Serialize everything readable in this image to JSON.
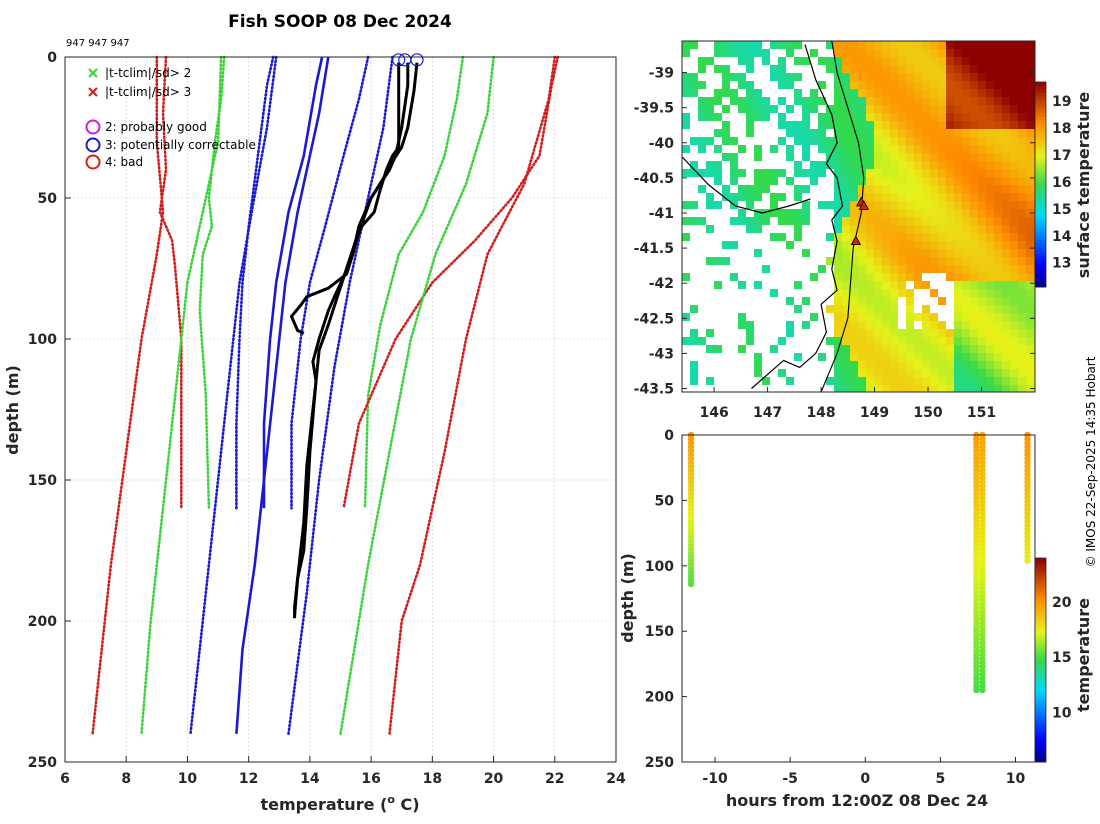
{
  "title": "Fish SOOP 08 Dec 2024",
  "cruise_ids": "947 947 947",
  "credit": "© IMOS 22-Sep-2025 14:35 Hobart",
  "colors": {
    "black": "#000000",
    "blue": "#1a1ad2",
    "green": "#3cd23c",
    "red": "#d21e1e",
    "magenta": "#d21ed2"
  },
  "chart_data": [
    {
      "type": "line",
      "name": "profiles",
      "xlabel": "temperature (",
      "xlabel_sup": "o",
      "xlabel_suffix": " C)",
      "ylabel": "depth (m)",
      "xlim": [
        6,
        24
      ],
      "ylim": [
        250,
        0
      ],
      "xticks": [
        6,
        8,
        10,
        12,
        14,
        16,
        18,
        20,
        22,
        24
      ],
      "yticks": [
        0,
        50,
        100,
        150,
        200,
        250
      ],
      "legend": [
        {
          "label": "|t-tclim|/sd> 2",
          "marker": "x",
          "color": "#3cd23c"
        },
        {
          "label": "|t-tclim|/sd> 3",
          "marker": "x",
          "color": "#d21e1e"
        },
        {
          "label": "2: probably good",
          "marker": "o",
          "color": "#d21ed2"
        },
        {
          "label": "3: potentially correctable",
          "marker": "o",
          "color": "#1a1ad2"
        },
        {
          "label": "4: bad",
          "marker": "o",
          "color": "#d21e1e"
        }
      ],
      "series": [
        {
          "name": "clim -3sd (0-160)",
          "style": "dotted",
          "color": "#d21e1e",
          "points": [
            [
              9.3,
              0
            ],
            [
              9.2,
              20
            ],
            [
              9.3,
              40
            ],
            [
              9.1,
              55
            ],
            [
              9.5,
              65
            ],
            [
              9.6,
              75
            ],
            [
              9.8,
              100
            ],
            [
              9.8,
              130
            ],
            [
              9.8,
              160
            ]
          ]
        },
        {
          "name": "clim -2sd (0-160)",
          "style": "dotted",
          "color": "#3cd23c",
          "points": [
            [
              11.2,
              0
            ],
            [
              11.1,
              15
            ],
            [
              10.9,
              30
            ],
            [
              10.7,
              50
            ],
            [
              10.8,
              60
            ],
            [
              10.5,
              70
            ],
            [
              10.4,
              90
            ],
            [
              10.6,
              120
            ],
            [
              10.7,
              160
            ]
          ]
        },
        {
          "name": "clim -1sd (0-160)",
          "style": "dotted",
          "color": "#1a1ad2",
          "points": [
            [
              12.8,
              0
            ],
            [
              12.6,
              10
            ],
            [
              12.3,
              35
            ],
            [
              12.0,
              60
            ],
            [
              11.8,
              80
            ],
            [
              11.7,
              100
            ],
            [
              11.6,
              130
            ],
            [
              11.6,
              160
            ]
          ]
        },
        {
          "name": "clim mean (0-160)",
          "style": "solid",
          "color": "#1a1ad2",
          "points": [
            [
              14.4,
              0
            ],
            [
              14.2,
              10
            ],
            [
              13.8,
              35
            ],
            [
              13.3,
              55
            ],
            [
              12.9,
              80
            ],
            [
              12.7,
              100
            ],
            [
              12.5,
              130
            ],
            [
              12.5,
              160
            ]
          ]
        },
        {
          "name": "clim +1sd (0-160)",
          "style": "dotted",
          "color": "#1a1ad2",
          "points": [
            [
              15.9,
              0
            ],
            [
              15.6,
              15
            ],
            [
              15.1,
              35
            ],
            [
              14.5,
              60
            ],
            [
              14.0,
              80
            ],
            [
              13.7,
              100
            ],
            [
              13.4,
              130
            ],
            [
              13.4,
              160
            ]
          ]
        },
        {
          "name": "clim +2sd (0-160)",
          "style": "dotted",
          "color": "#3cd23c",
          "points": [
            [
              19.0,
              0
            ],
            [
              18.8,
              15
            ],
            [
              18.4,
              35
            ],
            [
              17.7,
              55
            ],
            [
              16.9,
              70
            ],
            [
              16.3,
              95
            ],
            [
              15.9,
              120
            ],
            [
              15.8,
              160
            ]
          ]
        },
        {
          "name": "clim +3sd (0-160)",
          "style": "dotted",
          "color": "#d21e1e",
          "points": [
            [
              22.1,
              0
            ],
            [
              21.9,
              10
            ],
            [
              21.5,
              35
            ],
            [
              20.6,
              50
            ],
            [
              19.4,
              65
            ],
            [
              18.0,
              80
            ],
            [
              16.8,
              100
            ],
            [
              15.6,
              130
            ],
            [
              15.1,
              160
            ]
          ]
        },
        {
          "name": "clim -3sd (0-240)",
          "style": "dotted",
          "color": "#d21e1e",
          "points": [
            [
              9.0,
              0
            ],
            [
              9.0,
              30
            ],
            [
              9.2,
              55
            ],
            [
              9.0,
              70
            ],
            [
              8.5,
              100
            ],
            [
              8.0,
              140
            ],
            [
              7.5,
              180
            ],
            [
              6.9,
              240
            ]
          ]
        },
        {
          "name": "clim -2sd (0-240)",
          "style": "dotted",
          "color": "#3cd23c",
          "points": [
            [
              11.1,
              0
            ],
            [
              11.0,
              30
            ],
            [
              10.5,
              55
            ],
            [
              10.0,
              80
            ],
            [
              9.6,
              120
            ],
            [
              9.2,
              160
            ],
            [
              8.8,
              200
            ],
            [
              8.5,
              240
            ]
          ]
        },
        {
          "name": "clim -1sd (0-240)",
          "style": "dotted",
          "color": "#1a1ad2",
          "points": [
            [
              12.9,
              0
            ],
            [
              12.6,
              25
            ],
            [
              12.1,
              55
            ],
            [
              11.7,
              80
            ],
            [
              11.3,
              120
            ],
            [
              10.9,
              160
            ],
            [
              10.5,
              200
            ],
            [
              10.1,
              240
            ]
          ]
        },
        {
          "name": "clim mean (0-240)",
          "style": "solid",
          "color": "#1a1ad2",
          "points": [
            [
              14.6,
              0
            ],
            [
              14.3,
              20
            ],
            [
              13.6,
              55
            ],
            [
              13.2,
              80
            ],
            [
              12.8,
              120
            ],
            [
              12.5,
              150
            ],
            [
              12.2,
              180
            ],
            [
              11.8,
              210
            ],
            [
              11.6,
              240
            ]
          ]
        },
        {
          "name": "clim +1sd (0-240)",
          "style": "dotted",
          "color": "#1a1ad2",
          "points": [
            [
              16.7,
              0
            ],
            [
              16.4,
              25
            ],
            [
              15.8,
              55
            ],
            [
              15.3,
              80
            ],
            [
              14.8,
              110
            ],
            [
              14.3,
              150
            ],
            [
              13.9,
              190
            ],
            [
              13.3,
              240
            ]
          ]
        },
        {
          "name": "clim +2sd (0-240)",
          "style": "dotted",
          "color": "#3cd23c",
          "points": [
            [
              20.0,
              0
            ],
            [
              19.8,
              20
            ],
            [
              19.1,
              45
            ],
            [
              18.1,
              70
            ],
            [
              17.3,
              100
            ],
            [
              16.6,
              140
            ],
            [
              15.9,
              180
            ],
            [
              15.0,
              240
            ]
          ]
        },
        {
          "name": "clim +3sd (0-240)",
          "style": "dotted",
          "color": "#d21e1e",
          "points": [
            [
              22.0,
              0
            ],
            [
              21.8,
              15
            ],
            [
              21.0,
              45
            ],
            [
              19.8,
              70
            ],
            [
              19.1,
              100
            ],
            [
              18.4,
              140
            ],
            [
              17.6,
              180
            ],
            [
              17.0,
              200
            ],
            [
              16.6,
              240
            ]
          ]
        },
        {
          "name": "xbt profile 1",
          "style": "solid",
          "color": "#000000",
          "points": [
            [
              16.9,
              2
            ],
            [
              16.9,
              15
            ],
            [
              16.9,
              32
            ],
            [
              16.7,
              35
            ],
            [
              16.5,
              40
            ],
            [
              16.3,
              47
            ],
            [
              16.1,
              55
            ],
            [
              15.7,
              60
            ],
            [
              15.5,
              65
            ],
            [
              15.2,
              75
            ],
            [
              14.9,
              85
            ],
            [
              14.6,
              95
            ],
            [
              14.3,
              104
            ],
            [
              14.2,
              115
            ],
            [
              14.0,
              140
            ],
            [
              13.9,
              160
            ],
            [
              13.8,
              175
            ],
            [
              13.6,
              185
            ],
            [
              13.5,
              195
            ],
            [
              13.5,
              199
            ]
          ]
        },
        {
          "name": "xbt profile 2",
          "style": "solid",
          "color": "#000000",
          "points": [
            [
              17.2,
              2
            ],
            [
              17.2,
              10
            ],
            [
              17.0,
              25
            ],
            [
              16.8,
              35
            ],
            [
              16.6,
              40
            ],
            [
              16.3,
              45
            ],
            [
              16.0,
              50
            ],
            [
              15.6,
              60
            ],
            [
              15.4,
              70
            ],
            [
              15.2,
              77
            ],
            [
              14.6,
              82
            ],
            [
              13.9,
              85
            ],
            [
              13.7,
              88
            ],
            [
              13.4,
              92
            ],
            [
              13.6,
              97
            ],
            [
              13.8,
              98
            ]
          ]
        },
        {
          "name": "xbt profile 3",
          "style": "solid",
          "color": "#000000",
          "points": [
            [
              17.5,
              2
            ],
            [
              17.4,
              12
            ],
            [
              17.2,
              25
            ],
            [
              17.0,
              32
            ],
            [
              16.7,
              37
            ],
            [
              16.4,
              43
            ],
            [
              16.0,
              50
            ],
            [
              15.8,
              56
            ],
            [
              15.6,
              62
            ],
            [
              15.4,
              70
            ],
            [
              15.1,
              78
            ],
            [
              14.8,
              85
            ],
            [
              14.6,
              90
            ],
            [
              14.3,
              100
            ],
            [
              14.1,
              108
            ],
            [
              14.2,
              115
            ],
            [
              14.1,
              125
            ],
            [
              13.9,
              145
            ],
            [
              13.8,
              165
            ],
            [
              13.6,
              185
            ],
            [
              13.5,
              198
            ]
          ]
        }
      ],
      "surface_markers": [
        [
          16.9,
          1
        ],
        [
          17.1,
          1
        ],
        [
          17.5,
          1
        ]
      ]
    },
    {
      "type": "heatmap",
      "name": "sst map",
      "xlim": [
        145.4,
        152.0
      ],
      "ylim": [
        -43.55,
        -38.55
      ],
      "xticks": [
        146,
        147,
        148,
        149,
        150,
        151
      ],
      "yticks": [
        -39,
        -39.5,
        -40,
        -40.5,
        -41,
        -41.5,
        -42,
        -42.5,
        -43,
        -43.5
      ],
      "colorbar_label": "surface temperature",
      "colorbar_ticks": [
        13,
        14,
        15,
        16,
        17,
        18,
        19
      ],
      "colorbar_range": [
        12.1,
        19.7
      ],
      "drop_locations": [
        [
          148.75,
          -40.85
        ],
        [
          148.8,
          -40.9
        ],
        [
          148.65,
          -41.4
        ]
      ],
      "ship_track": [
        [
          148.2,
          -38.55
        ],
        [
          148.3,
          -39.0
        ],
        [
          148.5,
          -39.5
        ],
        [
          148.7,
          -40.0
        ],
        [
          148.8,
          -40.5
        ],
        [
          148.75,
          -41.0
        ],
        [
          148.6,
          -41.5
        ],
        [
          148.55,
          -42.0
        ],
        [
          148.5,
          -42.5
        ],
        [
          148.3,
          -43.0
        ],
        [
          148.0,
          -43.55
        ]
      ]
    },
    {
      "type": "scatter",
      "name": "depth-time",
      "xlabel": "hours from 12:00Z 08 Dec 24",
      "ylabel": "depth (m)",
      "xlim": [
        -12.2,
        11.3
      ],
      "ylim": [
        250,
        0
      ],
      "xticks": [
        -10,
        -5,
        0,
        5,
        10
      ],
      "yticks": [
        0,
        50,
        100,
        150,
        200,
        250
      ],
      "colorbar_label": "temperature",
      "colorbar_ticks": [
        10,
        15,
        20
      ],
      "colorbar_range": [
        5.5,
        24
      ],
      "drops": [
        {
          "hour": -11.6,
          "max_depth": 115,
          "t_surface": 20,
          "t_bottom": 15.2
        },
        {
          "hour": 7.4,
          "max_depth": 197,
          "t_surface": 19.8,
          "t_bottom": 15.0
        },
        {
          "hour": 7.8,
          "max_depth": 197,
          "t_surface": 19.6,
          "t_bottom": 15.0
        },
        {
          "hour": 10.8,
          "max_depth": 97,
          "t_surface": 20,
          "t_bottom": 17.5
        }
      ]
    }
  ]
}
